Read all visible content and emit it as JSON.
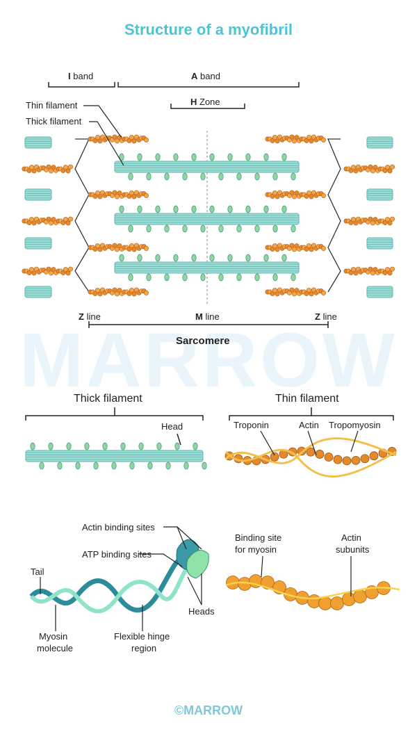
{
  "title": "Structure of a myofibril",
  "watermark": "MARROW",
  "footer": "©MARROW",
  "top_diagram": {
    "i_band": {
      "letter": "I",
      "word": "band"
    },
    "a_band": {
      "letter": "A",
      "word": "band"
    },
    "h_zone": {
      "letter": "H",
      "word": "Zone"
    },
    "thin_filament": "Thin filament",
    "thick_filament": "Thick filament",
    "z_line_left": {
      "letter": "Z",
      "word": "line"
    },
    "m_line": {
      "letter": "M",
      "word": "line"
    },
    "z_line_right": {
      "letter": "Z",
      "word": "line"
    },
    "sarcomere": "Sarcomere"
  },
  "middle": {
    "thick_title": "Thick filament",
    "head": "Head",
    "thin_title": "Thin filament",
    "troponin": "Troponin",
    "actin": "Actin",
    "tropomyosin": "Tropomyosin"
  },
  "bottom": {
    "actin_binding_sites": "Actin binding sites",
    "atp_binding_sites": "ATP binding sites",
    "tail": "Tail",
    "heads": "Heads",
    "myosin_molecule_1": "Myosin",
    "myosin_molecule_2": "molecule",
    "hinge_1": "Flexible hinge",
    "hinge_2": "region",
    "binding_site_1": "Binding site",
    "binding_site_2": "for myosin",
    "actin_subunits_1": "Actin",
    "actin_subunits_2": "subunits"
  },
  "colors": {
    "title": "#4fc3d3",
    "thick": "#5bb9b0",
    "thin": "#e8892a",
    "myosin_tail": "#7dd3c8",
    "actin_ball": "#f0a030"
  }
}
